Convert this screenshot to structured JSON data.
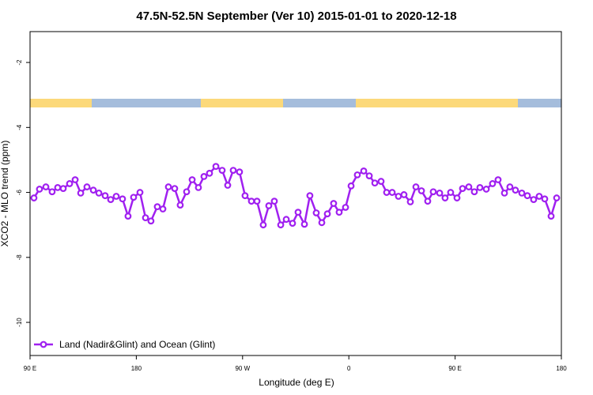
{
  "chart_data": {
    "type": "line",
    "title": "47.5N-52.5N September (Ver 10)   2015-01-01 to 2020-12-18",
    "x_label": "Longitude (deg E)",
    "y_label": "XCO2 - MLO trend (ppm)",
    "xlim": [
      90,
      540
    ],
    "ylim": [
      -11.02,
      -1.05
    ],
    "xticks": [
      {
        "value": 90,
        "label": "90 E"
      },
      180,
      {
        "value": 270,
        "label": "90 W"
      },
      {
        "value": 360,
        "label": "0"
      },
      {
        "value": 450,
        "label": "90 E"
      },
      {
        "value": 540,
        "label": "180"
      }
    ],
    "yticks": [
      -2,
      -4,
      -6,
      -8,
      -10
    ],
    "legend": "bottom-left",
    "x": [
      93.3,
      98.0,
      103.4,
      108.7,
      113.4,
      118.1,
      123.5,
      128.2,
      132.9,
      138.2,
      143.6,
      148.3,
      153.6,
      158.3,
      163.0,
      168.3,
      173.0,
      177.7,
      183.1,
      187.8,
      192.4,
      197.8,
      202.5,
      207.2,
      212.5,
      217.2,
      222.6,
      227.3,
      232.6,
      237.3,
      242.0,
      247.4,
      252.7,
      257.4,
      262.1,
      267.4,
      272.1,
      277.5,
      282.2,
      287.5,
      292.2,
      296.9,
      302.3,
      307.0,
      312.3,
      317.0,
      322.4,
      327.0,
      332.4,
      337.1,
      341.8,
      347.1,
      351.8,
      357.2,
      361.9,
      367.2,
      372.6,
      377.3,
      382.0,
      387.3,
      392.0,
      396.7,
      402.0,
      406.7,
      412.1,
      416.8,
      421.5,
      426.8,
      431.5,
      436.9,
      441.5,
      446.2,
      451.6,
      456.3,
      461.6,
      466.3,
      471.0,
      476.4,
      481.7,
      486.4,
      491.8,
      496.4,
      501.1,
      506.5,
      511.2,
      516.5,
      521.2,
      525.9,
      531.3,
      536.0
    ],
    "series": [
      {
        "name": "Land (Nadir&Glint) and Ocean (Glint)",
        "color": "#a020f0",
        "values": [
          -6.17,
          -5.9,
          -5.83,
          -5.98,
          -5.85,
          -5.88,
          -5.73,
          -5.61,
          -6.02,
          -5.83,
          -5.93,
          -6.02,
          -6.1,
          -6.22,
          -6.12,
          -6.2,
          -6.73,
          -6.15,
          -6.0,
          -6.78,
          -6.88,
          -6.44,
          -6.51,
          -5.83,
          -5.88,
          -6.39,
          -5.98,
          -5.61,
          -5.85,
          -5.51,
          -5.41,
          -5.2,
          -5.32,
          -5.78,
          -5.32,
          -5.37,
          -6.1,
          -6.27,
          -6.27,
          -7.0,
          -6.41,
          -6.27,
          -7.0,
          -6.83,
          -6.95,
          -6.61,
          -6.98,
          -6.1,
          -6.63,
          -6.93,
          -6.66,
          -6.34,
          -6.61,
          -6.46,
          -5.8,
          -5.46,
          -5.34,
          -5.49,
          -5.71,
          -5.66,
          -6.0,
          -6.0,
          -6.12,
          -6.07,
          -6.29,
          -5.83,
          -5.95,
          -6.27,
          -5.98,
          -6.02,
          -6.17,
          -6.0,
          -6.17,
          -5.88,
          -5.83,
          -5.98,
          -5.85,
          -5.9,
          -5.73,
          -5.61,
          -6.02,
          -5.83,
          -5.93,
          -6.02,
          -6.1,
          -6.22,
          -6.12,
          -6.2,
          -6.73,
          -6.17
        ]
      }
    ]
  }
}
